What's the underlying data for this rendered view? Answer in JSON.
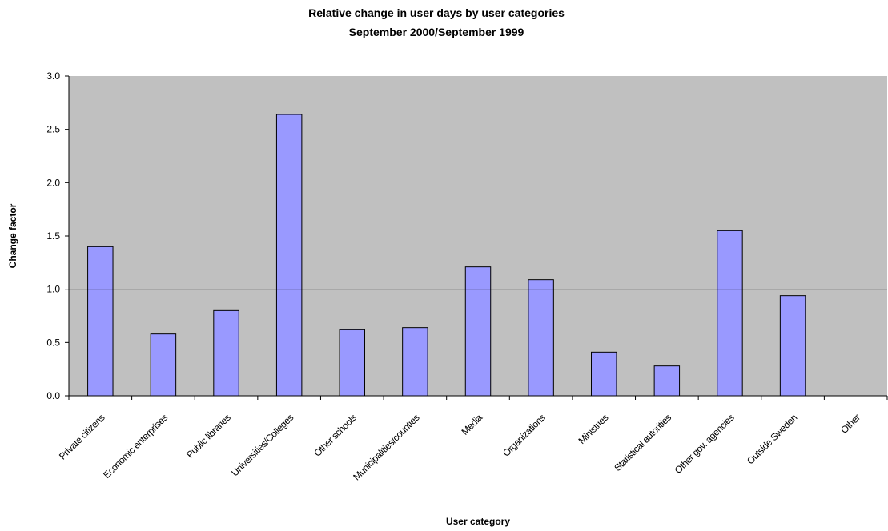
{
  "chart_data": {
    "type": "bar",
    "title": "Relative change in user days by user categories",
    "subtitle": "September 2000/September 1999",
    "xlabel": "User category",
    "ylabel": "Change factor",
    "ylim": [
      0,
      3.0
    ],
    "yticks": [
      "0.0",
      "0.5",
      "1.0",
      "1.5",
      "2.0",
      "2.5",
      "3.0"
    ],
    "reference_line": 1.0,
    "grid": false,
    "legend": "none",
    "plot_background": "#c0c0c0",
    "bar_color": "#9999ff",
    "categories": [
      "Private citizens",
      "Economic enterprises",
      "Public libraries",
      "Universities/Colleges",
      "Other schools",
      "Municipalities/counties",
      "Media",
      "Organizations",
      "Ministries",
      "Statistical autorities",
      "Other gov. agencies",
      "Outside Sweden",
      "Other"
    ],
    "values": [
      1.4,
      0.58,
      0.8,
      2.64,
      0.62,
      0.64,
      1.21,
      1.09,
      0.41,
      0.28,
      1.55,
      0.94,
      0
    ]
  }
}
